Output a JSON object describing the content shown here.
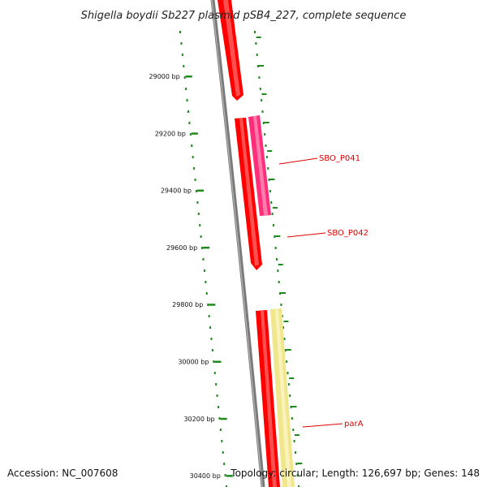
{
  "title": "Shigella boydii Sb227 plasmid pSB4_227, complete sequence",
  "ticks": [
    {
      "bp": 29000,
      "label": "29000 bp"
    },
    {
      "bp": 29200,
      "label": "29200 bp"
    },
    {
      "bp": 29400,
      "label": "29400 bp"
    },
    {
      "bp": 29600,
      "label": "29600 bp"
    },
    {
      "bp": 29800,
      "label": "29800 bp"
    },
    {
      "bp": 30000,
      "label": "30000 bp"
    },
    {
      "bp": 30200,
      "label": "30200 bp"
    },
    {
      "bp": 30400,
      "label": "30400 bp"
    }
  ],
  "genes": [
    {
      "label": "SBO_P041",
      "color": "#ff2d7a"
    },
    {
      "label": "SBO_P042",
      "color": "#ff0000"
    },
    {
      "label": "parA",
      "color": "#f0e68c"
    }
  ],
  "footer": {
    "accession": "Accession: NC_007608",
    "topology": "Topology: circular; Length: 126,697 bp; Genes: 148"
  },
  "colors": {
    "backbone": "#808080",
    "tick": "#1e8a1e",
    "gene_red": "#ff0000",
    "gene_pink": "#ff2d7a",
    "gene_yellow": "#f0e68c",
    "label_red": "#dd0000"
  }
}
